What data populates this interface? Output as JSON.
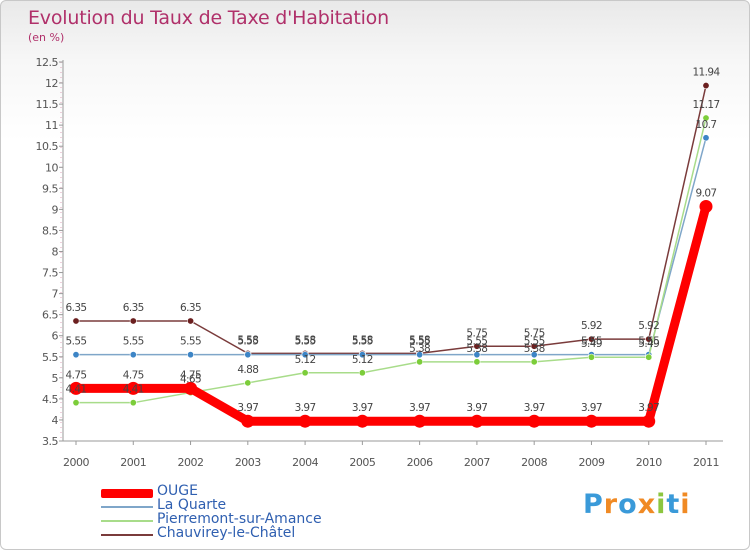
{
  "title": "Evolution du Taux de Taxe d'Habitation",
  "unit_label": "(en %)",
  "logo": {
    "text": "Proxiti",
    "colors": [
      "#3a9ad9",
      "#f08a24",
      "#3a9ad9",
      "#f08a24",
      "#8cc63f",
      "#3a9ad9",
      "#f08a24"
    ]
  },
  "chart_data": {
    "type": "line",
    "x": [
      "2000",
      "2001",
      "2002",
      "2003",
      "2004",
      "2005",
      "2006",
      "2007",
      "2008",
      "2009",
      "2010",
      "2011"
    ],
    "ylim": [
      3.5,
      12.5
    ],
    "yticks": [
      "3.5",
      "4",
      "4.5",
      "5",
      "5.5",
      "6",
      "6.5",
      "7",
      "7.5",
      "8",
      "8.5",
      "9",
      "9.5",
      "10",
      "10.5",
      "11",
      "11.5",
      "12",
      "12.5"
    ],
    "grid": false,
    "legend_position": "bottom-left",
    "series": [
      {
        "name": "OUGE",
        "color": "#ff0000",
        "values": [
          4.75,
          4.75,
          4.75,
          3.97,
          3.97,
          3.97,
          3.97,
          3.97,
          3.97,
          3.97,
          3.97,
          9.07
        ],
        "labels": [
          "4.75",
          "4.75",
          "4.75",
          "3.97",
          "3.97",
          "3.97",
          "3.97",
          "3.97",
          "3.97",
          "3.97",
          "3.97",
          "9.07"
        ]
      },
      {
        "name": "La Quarte",
        "color": "#7fa6c9",
        "marker": "#3d85c6",
        "values": [
          5.55,
          5.55,
          5.55,
          5.55,
          5.55,
          5.55,
          5.55,
          5.55,
          5.55,
          5.55,
          5.55,
          10.7
        ],
        "labels": [
          "5.55",
          "5.55",
          "5.55",
          "5.55",
          "5.55",
          "5.55",
          "5.55",
          "5.55",
          "5.55",
          "5.55",
          "5.55",
          "10.7"
        ]
      },
      {
        "name": "Pierremont-sur-Amance",
        "color": "#a8dc8a",
        "marker": "#7ccd3a",
        "values": [
          4.41,
          4.41,
          4.65,
          4.88,
          5.12,
          5.12,
          5.38,
          5.38,
          5.38,
          5.49,
          5.49,
          11.17
        ],
        "labels": [
          "4.41",
          "4.41",
          "4.65",
          "4.88",
          "5.12",
          "5.12",
          "5.38",
          "5.38",
          "5.38",
          "5.49",
          "5.49",
          "11.17"
        ]
      },
      {
        "name": "Chauvirey-le-Châtel",
        "color": "#7a3b3b",
        "marker": "#6b1f1f",
        "values": [
          6.35,
          6.35,
          6.35,
          5.58,
          5.58,
          5.58,
          5.58,
          5.75,
          5.75,
          5.92,
          5.92,
          11.94
        ],
        "labels": [
          "6.35",
          "6.35",
          "6.35",
          "5.58",
          "5.58",
          "5.58",
          "5.58",
          "5.75",
          "5.75",
          "5.92",
          "5.92",
          "11.94"
        ]
      }
    ]
  }
}
